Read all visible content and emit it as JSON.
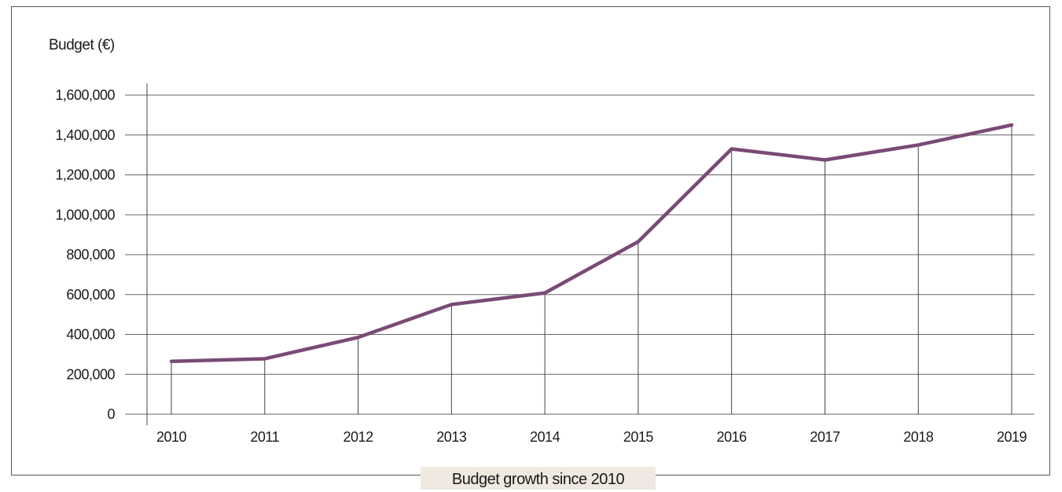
{
  "chart_data": {
    "type": "line",
    "title": "Budget growth since 2010",
    "ylabel": "Budget (€)",
    "xlabel": "",
    "categories": [
      "2010",
      "2011",
      "2012",
      "2013",
      "2014",
      "2015",
      "2016",
      "2017",
      "2018",
      "2019"
    ],
    "values": [
      265000,
      278000,
      385000,
      550000,
      608000,
      865000,
      1330000,
      1275000,
      1350000,
      1450000
    ],
    "ylim": [
      0,
      1600000
    ],
    "yticks": [
      "0",
      "200,000",
      "400,000",
      "600,000",
      "800,000",
      "1,000,000",
      "1,200,000",
      "1,400,000",
      "1,600,000"
    ],
    "grid": true,
    "line_color": "#7a4a75",
    "caption_bg": "#efe9e2"
  }
}
